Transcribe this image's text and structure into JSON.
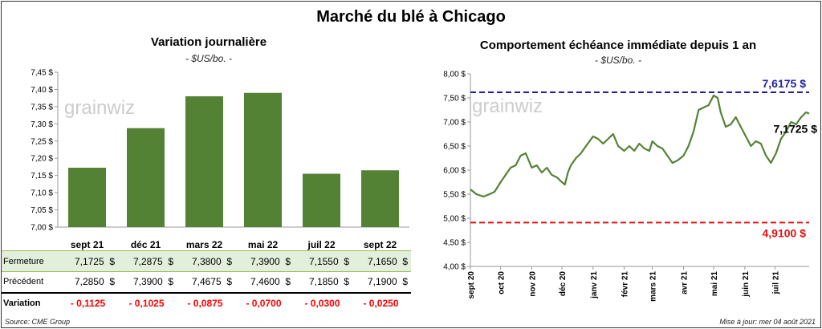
{
  "title": "Marché du blé à Chicago",
  "left": {
    "subtitle": "Variation journalière",
    "unit": "- $US/bo. -",
    "watermark": "grainwiz"
  },
  "right": {
    "subtitle": "Comportement  échéance immédiate depuis 1 an",
    "unit": "- $US/bo. -",
    "watermark": "grainwiz",
    "max_label": "7,6175 $",
    "min_label": "4,9100 $",
    "last_label": "7,1725 $"
  },
  "table": {
    "rows": [
      {
        "label": "Fermeture",
        "values": [
          "7,1725  $",
          "7,2875  $",
          "7,3800  $",
          "7,3900  $",
          "7,1550  $",
          "7,1650  $"
        ]
      },
      {
        "label": "Précédent",
        "values": [
          "7,2850  $",
          "7,3900  $",
          "7,4675  $",
          "7,4600  $",
          "7,1850  $",
          "7,1900  $"
        ]
      },
      {
        "label": "Variation",
        "values": [
          "- 0,1125",
          "- 0,1025",
          "- 0,0875",
          "- 0,0700",
          "- 0,0300",
          "- 0,0250"
        ]
      }
    ]
  },
  "footer": {
    "source": "Source: CME Group",
    "update": "Mise à jour: mer 04 août 2021"
  },
  "colors": {
    "bar": "#548235",
    "line": "#548235",
    "max_line": "#1f1fa3",
    "min_line": "#e01010",
    "fermeture_bg": "#e2efda"
  },
  "chart_data": [
    {
      "type": "bar",
      "title": "Variation journalière",
      "categories": [
        "sept 21",
        "déc 21",
        "mars 22",
        "mai 22",
        "juil 22",
        "sept 22"
      ],
      "values": [
        7.1725,
        7.2875,
        7.38,
        7.39,
        7.155,
        7.165
      ],
      "ylim": [
        7.0,
        7.45
      ],
      "yticks": [
        "7,00 $",
        "7,05 $",
        "7,10 $",
        "7,15 $",
        "7,20 $",
        "7,25 $",
        "7,30 $",
        "7,35 $",
        "7,40 $",
        "7,45 $"
      ],
      "ytick_values": [
        7.0,
        7.05,
        7.1,
        7.15,
        7.2,
        7.25,
        7.3,
        7.35,
        7.4,
        7.45
      ],
      "grid": false
    },
    {
      "type": "line",
      "title": "Comportement  échéance immédiate depuis 1 an",
      "ylim": [
        4.0,
        8.0
      ],
      "yticks": [
        "4,00 $",
        "4,50 $",
        "5,00 $",
        "5,50 $",
        "6,00 $",
        "6,50 $",
        "7,00 $",
        "7,50 $",
        "8,00 $"
      ],
      "ytick_values": [
        4.0,
        4.5,
        5.0,
        5.5,
        6.0,
        6.5,
        7.0,
        7.5,
        8.0
      ],
      "xticks": [
        "sept 20",
        "oct 20",
        "nov 20",
        "déc 20",
        "janv 21",
        "févr 21",
        "mars 21",
        "avr 21",
        "mai 21",
        "juin 21",
        "juil 21"
      ],
      "xtick_dates": [
        "2020-09-01",
        "2020-10-01",
        "2020-11-01",
        "2020-12-01",
        "2021-01-01",
        "2021-02-01",
        "2021-03-01",
        "2021-04-01",
        "2021-05-01",
        "2021-06-01",
        "2021-07-01"
      ],
      "x_start": "2020-09-01",
      "x_end": "2021-08-04",
      "max_value": 7.6175,
      "min_value": 4.91,
      "last_value": 7.1725,
      "series": [
        {
          "x": [
            "2020-09-01",
            "2020-09-07",
            "2020-09-14",
            "2020-09-20",
            "2020-09-25",
            "2020-10-01",
            "2020-10-06",
            "2020-10-11",
            "2020-10-16",
            "2020-10-21",
            "2020-10-26",
            "2020-11-01",
            "2020-11-06",
            "2020-11-11",
            "2020-11-16",
            "2020-11-21",
            "2020-11-26",
            "2020-12-01",
            "2020-12-04",
            "2020-12-07",
            "2020-12-10",
            "2020-12-15",
            "2020-12-20",
            "2020-12-25",
            "2021-01-01",
            "2021-01-06",
            "2021-01-11",
            "2021-01-16",
            "2021-01-21",
            "2021-01-26",
            "2021-02-01",
            "2021-02-06",
            "2021-02-11",
            "2021-02-16",
            "2021-02-21",
            "2021-02-26",
            "2021-03-01",
            "2021-03-06",
            "2021-03-11",
            "2021-03-16",
            "2021-03-21",
            "2021-03-26",
            "2021-04-01",
            "2021-04-06",
            "2021-04-11",
            "2021-04-16",
            "2021-04-21",
            "2021-04-26",
            "2021-05-01",
            "2021-05-05",
            "2021-05-08",
            "2021-05-13",
            "2021-05-18",
            "2021-05-23",
            "2021-05-28",
            "2021-06-02",
            "2021-06-07",
            "2021-06-12",
            "2021-06-17",
            "2021-06-22",
            "2021-06-27",
            "2021-07-02",
            "2021-07-07",
            "2021-07-12",
            "2021-07-17",
            "2021-07-22",
            "2021-07-27",
            "2021-08-01",
            "2021-08-04"
          ],
          "y": [
            5.6,
            5.5,
            5.45,
            5.5,
            5.55,
            5.75,
            5.9,
            6.05,
            6.1,
            6.3,
            6.35,
            6.05,
            6.1,
            5.95,
            6.05,
            5.9,
            5.85,
            5.75,
            5.7,
            5.95,
            6.1,
            6.25,
            6.35,
            6.5,
            6.7,
            6.65,
            6.55,
            6.65,
            6.75,
            6.5,
            6.4,
            6.5,
            6.4,
            6.55,
            6.45,
            6.4,
            6.6,
            6.5,
            6.45,
            6.3,
            6.15,
            6.2,
            6.3,
            6.5,
            6.8,
            7.25,
            7.3,
            7.35,
            7.55,
            7.5,
            7.2,
            6.9,
            6.95,
            7.1,
            6.9,
            6.7,
            6.5,
            6.6,
            6.55,
            6.3,
            6.15,
            6.35,
            6.65,
            6.8,
            7.0,
            6.95,
            7.1,
            7.2,
            7.1725
          ]
        }
      ],
      "grid": false
    }
  ]
}
